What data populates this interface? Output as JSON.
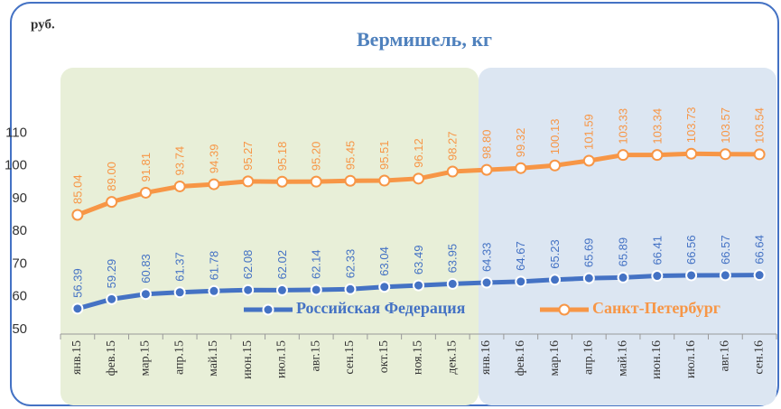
{
  "chart_data": {
    "type": "line",
    "title": "Вермишель, кг",
    "y_axis_label": "руб.",
    "categories": [
      "янв.15",
      "фев.15",
      "мар.15",
      "апр.15",
      "май.15",
      "июн.15",
      "июл.15",
      "авг.15",
      "сен.15",
      "окт.15",
      "ноя.15",
      "дек.15",
      "янв.16",
      "фев.16",
      "мар.16",
      "апр.16",
      "май.16",
      "июн.16",
      "июл.16",
      "авг.16",
      "сен.16"
    ],
    "series": [
      {
        "name": "Российская Федерация",
        "color": "#4472c4",
        "values": [
          56.39,
          59.29,
          60.83,
          61.37,
          61.78,
          62.08,
          62.02,
          62.14,
          62.33,
          63.04,
          63.49,
          63.95,
          64.33,
          64.67,
          65.23,
          65.69,
          65.89,
          66.41,
          66.56,
          66.57,
          66.64
        ],
        "value_labels": [
          "56.39",
          "59.29",
          "60.83",
          "61.37",
          "61.78",
          "62.08",
          "62.02",
          "62.14",
          "62.33",
          "63.04",
          "63.49",
          "63.95",
          "64.33",
          "64.67",
          "65.23",
          "65.69",
          "65.89",
          "66.41",
          "66.56",
          "66.57",
          "66.64"
        ]
      },
      {
        "name": "Санкт-Петербург",
        "color": "#f79646",
        "values": [
          85.04,
          89.0,
          91.81,
          93.74,
          94.39,
          95.27,
          95.18,
          95.2,
          95.45,
          95.51,
          96.12,
          98.27,
          98.8,
          99.32,
          100.13,
          101.59,
          103.33,
          103.34,
          103.73,
          103.57,
          103.54
        ],
        "value_labels": [
          "85.04",
          "89.00",
          "91.81",
          "93.74",
          "94.39",
          "95.27",
          "95.18",
          "95.20",
          "95.45",
          "95.51",
          "96.12",
          "98.27",
          "98.80",
          "99.32",
          "100.13",
          "101.59",
          "103.33",
          "103.34",
          "103.73",
          "103.57",
          "103.54"
        ]
      }
    ],
    "ylim": [
      50,
      130
    ],
    "yticks": [
      50,
      60,
      70,
      80,
      90,
      100,
      110
    ],
    "grid": false
  }
}
